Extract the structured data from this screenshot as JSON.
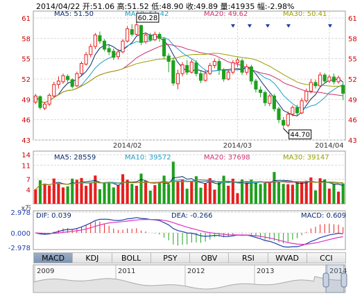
{
  "header": {
    "text": "2014/04/22 开:51.06  高:51.52  低:48.90  收:49.89  量:41935  幅:-2.98%"
  },
  "price_panel": {
    "ma_labels": [
      {
        "text": "MA5: 51.50",
        "color": "#0a2a6e"
      },
      {
        "text": "MA10: 51.42",
        "color": "#1aa0c8"
      },
      {
        "text": "MA20: 49.62",
        "color": "#d0306e"
      },
      {
        "text": "MA30: 50.41",
        "color": "#9aa000"
      }
    ],
    "y_ticks": [
      "61",
      "58",
      "55",
      "52",
      "49",
      "46",
      "43"
    ],
    "x_ticks": [
      "2014/02",
      "2014/03",
      "2014/04"
    ],
    "high_label": "60.28",
    "low_label": "44.70"
  },
  "volume_panel": {
    "ma_labels": [
      {
        "text": "MA5: 28559",
        "color": "#0a2a6e"
      },
      {
        "text": "MA10: 39572",
        "color": "#1aa0c8"
      },
      {
        "text": "MA20: 37698",
        "color": "#d0306e"
      },
      {
        "text": "MA30: 39147",
        "color": "#9aa000"
      }
    ],
    "y_ticks": [
      "14",
      "11",
      "7",
      "4"
    ],
    "unit": "x万"
  },
  "macd_panel": {
    "dif_label": "DIF: 0.039",
    "dea_label": "DEA: -0.266",
    "macd_label": "MACD: 0.609",
    "y_ticks": [
      "2.978",
      "0.000",
      "-2.978"
    ]
  },
  "tabs": [
    {
      "label": "MACD",
      "active": true
    },
    {
      "label": "KDJ",
      "active": false
    },
    {
      "label": "BOLL",
      "active": false
    },
    {
      "label": "PSY",
      "active": false
    },
    {
      "label": "OBV",
      "active": false
    },
    {
      "label": "RSI",
      "active": false
    },
    {
      "label": "WVAD",
      "active": false
    },
    {
      "label": "CCI",
      "active": false
    }
  ],
  "navigator": {
    "years": [
      "2009",
      "2011",
      "2012",
      "2013",
      "2014"
    ]
  },
  "colors": {
    "up": "#e81e1e",
    "down": "#1ea01e",
    "grid": "#d8d8d8",
    "axis_text_red": "#cc0000",
    "axis_text_blue": "#1f3faa"
  },
  "chart_data": {
    "type": "candlestick",
    "x_ticks": [
      "2014/02",
      "2014/03",
      "2014/04"
    ],
    "y_ticks": [
      61,
      58,
      55,
      52,
      49,
      46,
      43
    ],
    "ylim": [
      43,
      61
    ],
    "annotations": [
      {
        "text": "60.28",
        "value": 60.28
      },
      {
        "text": "44.70",
        "value": 44.7
      }
    ],
    "candles": [
      [
        48.6,
        49.5,
        48.3,
        49.8
      ],
      [
        49.4,
        47.8,
        47.5,
        49.6
      ],
      [
        47.7,
        48.3,
        47.4,
        48.6
      ],
      [
        48.3,
        49.6,
        48.0,
        49.9
      ],
      [
        49.5,
        51.2,
        49.3,
        51.6
      ],
      [
        51.2,
        51.7,
        50.6,
        52.4
      ],
      [
        51.6,
        52.5,
        51.3,
        52.8
      ],
      [
        52.4,
        51.9,
        51.5,
        52.7
      ],
      [
        51.9,
        50.9,
        50.6,
        52.1
      ],
      [
        51.0,
        52.8,
        50.8,
        53.1
      ],
      [
        52.8,
        54.3,
        52.5,
        54.6
      ],
      [
        54.2,
        55.6,
        54.0,
        56.0
      ],
      [
        55.6,
        56.8,
        55.2,
        57.2
      ],
      [
        56.8,
        58.5,
        56.4,
        58.8
      ],
      [
        58.4,
        57.6,
        57.2,
        59.0
      ],
      [
        57.6,
        56.4,
        56.1,
        57.9
      ],
      [
        56.5,
        56.0,
        55.5,
        57.0
      ],
      [
        56.1,
        55.2,
        54.8,
        56.5
      ],
      [
        55.3,
        56.0,
        54.9,
        56.4
      ],
      [
        56.0,
        57.6,
        55.8,
        57.9
      ],
      [
        57.6,
        59.4,
        57.4,
        59.8
      ],
      [
        59.3,
        58.6,
        58.3,
        60.1
      ],
      [
        58.6,
        60.0,
        58.4,
        60.28
      ],
      [
        59.9,
        57.4,
        57.0,
        60.0
      ],
      [
        57.5,
        58.5,
        57.2,
        58.9
      ],
      [
        58.4,
        57.8,
        57.5,
        58.8
      ],
      [
        57.8,
        58.6,
        57.6,
        59.0
      ],
      [
        58.6,
        58.0,
        57.5,
        58.9
      ],
      [
        57.9,
        55.4,
        55.0,
        58.1
      ],
      [
        55.4,
        54.6,
        53.0,
        55.8
      ],
      [
        54.7,
        51.4,
        51.0,
        55.2
      ],
      [
        51.3,
        52.8,
        50.5,
        53.4
      ],
      [
        52.8,
        54.1,
        52.4,
        54.5
      ],
      [
        54.0,
        53.0,
        52.6,
        54.8
      ],
      [
        53.0,
        54.5,
        52.8,
        54.9
      ],
      [
        54.4,
        52.8,
        52.4,
        54.8
      ],
      [
        52.8,
        51.8,
        51.4,
        53.2
      ],
      [
        51.8,
        52.8,
        51.6,
        53.3
      ],
      [
        52.8,
        54.0,
        52.6,
        54.4
      ],
      [
        54.0,
        54.6,
        53.6,
        55.0
      ],
      [
        54.6,
        53.4,
        52.6,
        55.0
      ],
      [
        53.4,
        52.0,
        51.6,
        53.6
      ],
      [
        52.0,
        53.0,
        51.8,
        53.4
      ],
      [
        53.0,
        54.4,
        52.7,
        54.8
      ],
      [
        54.4,
        54.8,
        53.8,
        55.2
      ],
      [
        54.7,
        53.0,
        52.6,
        55.0
      ],
      [
        53.0,
        53.8,
        52.6,
        54.2
      ],
      [
        53.8,
        51.7,
        51.2,
        54.1
      ],
      [
        51.7,
        50.5,
        50.0,
        52.0
      ],
      [
        50.4,
        50.0,
        49.3,
        50.9
      ],
      [
        50.0,
        48.5,
        48.0,
        50.3
      ],
      [
        48.4,
        49.5,
        48.0,
        49.8
      ],
      [
        49.5,
        47.6,
        47.2,
        49.8
      ],
      [
        47.6,
        46.0,
        45.5,
        47.9
      ],
      [
        45.9,
        45.2,
        44.7,
        46.4
      ],
      [
        45.2,
        46.8,
        44.9,
        47.2
      ],
      [
        46.8,
        47.8,
        46.5,
        48.1
      ],
      [
        47.8,
        47.0,
        46.6,
        48.2
      ],
      [
        47.0,
        48.8,
        46.8,
        49.2
      ],
      [
        48.8,
        50.2,
        48.5,
        50.6
      ],
      [
        50.2,
        51.5,
        49.9,
        52.0
      ],
      [
        51.5,
        51.0,
        50.6,
        51.9
      ],
      [
        51.0,
        52.6,
        50.8,
        53.0
      ],
      [
        52.6,
        51.7,
        51.3,
        52.9
      ],
      [
        51.7,
        52.3,
        51.4,
        52.6
      ],
      [
        52.3,
        51.6,
        51.2,
        52.8
      ],
      [
        51.6,
        52.2,
        51.3,
        52.5
      ],
      [
        51.06,
        49.89,
        48.9,
        51.52
      ]
    ]
  }
}
